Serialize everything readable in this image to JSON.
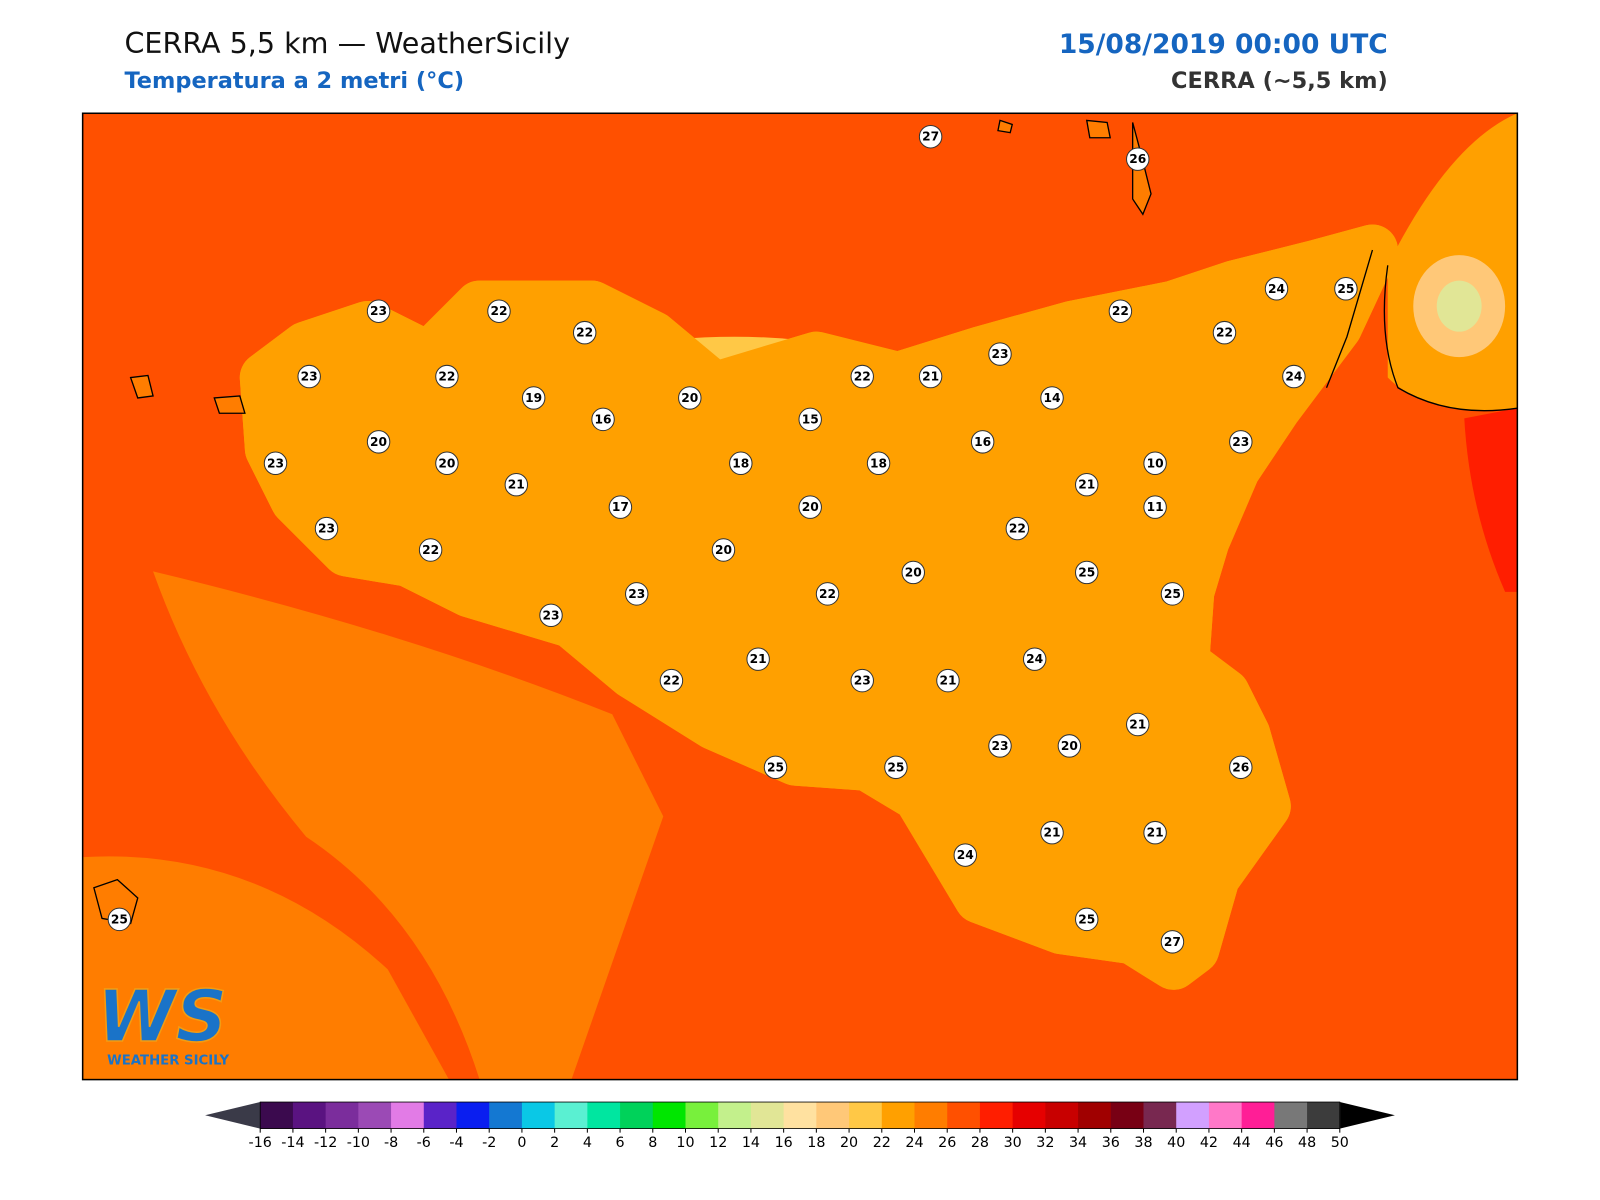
{
  "header": {
    "title": "CERRA 5,5 km — WeatherSicily",
    "subtitle": "Temperatura a 2 metri (°C)",
    "datetime": "15/08/2019 00:00 UTC",
    "model": "CERRA (~5,5 km)"
  },
  "stations": [
    27,
    26,
    23,
    22,
    22,
    22,
    22,
    24,
    25,
    23,
    22,
    22,
    21,
    23,
    24,
    19,
    20,
    16,
    15,
    14,
    20,
    16,
    23,
    23,
    20,
    18,
    18,
    10,
    21,
    21,
    17,
    20,
    11,
    23,
    22,
    22,
    20,
    20,
    25,
    23,
    22,
    25,
    23,
    21,
    24,
    22,
    23,
    21,
    21,
    23,
    20,
    25,
    25,
    26,
    21,
    21,
    24,
    25,
    25,
    27
  ],
  "colorbar": {
    "ticks": [
      -16,
      -14,
      -12,
      -10,
      -8,
      -6,
      -4,
      -2,
      0,
      2,
      4,
      6,
      8,
      10,
      12,
      14,
      16,
      18,
      20,
      22,
      24,
      26,
      28,
      30,
      32,
      34,
      36,
      38,
      40,
      42,
      44,
      46,
      48,
      50
    ],
    "colors": [
      "#3b0a4e",
      "#5a1381",
      "#7b2d9c",
      "#9b4ab5",
      "#e27be6",
      "#5a23c8",
      "#0a1ef0",
      "#1478d2",
      "#0ac8e6",
      "#5af0d2",
      "#00e6a0",
      "#00d25a",
      "#00e600",
      "#78f03c",
      "#c3f08c",
      "#e1e696",
      "#ffe1a0",
      "#ffc878",
      "#ffc846",
      "#ffa000",
      "#ff7d00",
      "#ff5000",
      "#ff1e00",
      "#e60000",
      "#c80000",
      "#a00000",
      "#780014",
      "#782850",
      "#d2a0ff",
      "#ff78c8",
      "#ff1e96",
      "#787878",
      "#3c3c3c"
    ],
    "under_color": "#3a3a48",
    "over_color": "#000000"
  },
  "logo": {
    "mark": "WS",
    "name": "WEATHER SICILY"
  }
}
